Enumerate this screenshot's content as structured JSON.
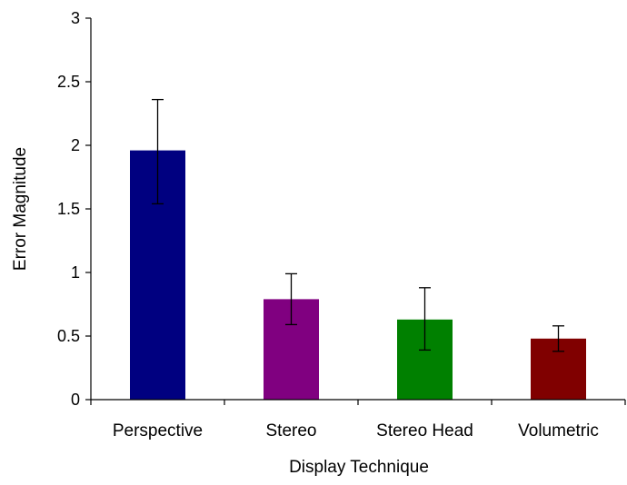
{
  "chart_data": {
    "type": "bar",
    "title": "",
    "xlabel": "Display Technique",
    "ylabel": "Error Magnitude",
    "categories": [
      "Perspective",
      "Stereo",
      "Stereo Head",
      "Volumetric"
    ],
    "values": [
      1.96,
      0.79,
      0.63,
      0.48
    ],
    "error_low": [
      1.54,
      0.59,
      0.39,
      0.38
    ],
    "error_high": [
      2.36,
      0.99,
      0.88,
      0.58
    ],
    "bar_colors": [
      "#000080",
      "#800080",
      "#008000",
      "#800000"
    ],
    "ylim": [
      0,
      3
    ],
    "yticks": [
      "0",
      "0.5",
      "1",
      "1.5",
      "2",
      "2.5",
      "3"
    ],
    "ytick_values": [
      0,
      0.5,
      1,
      1.5,
      2,
      2.5,
      3
    ],
    "grid": false,
    "legend": "none"
  }
}
